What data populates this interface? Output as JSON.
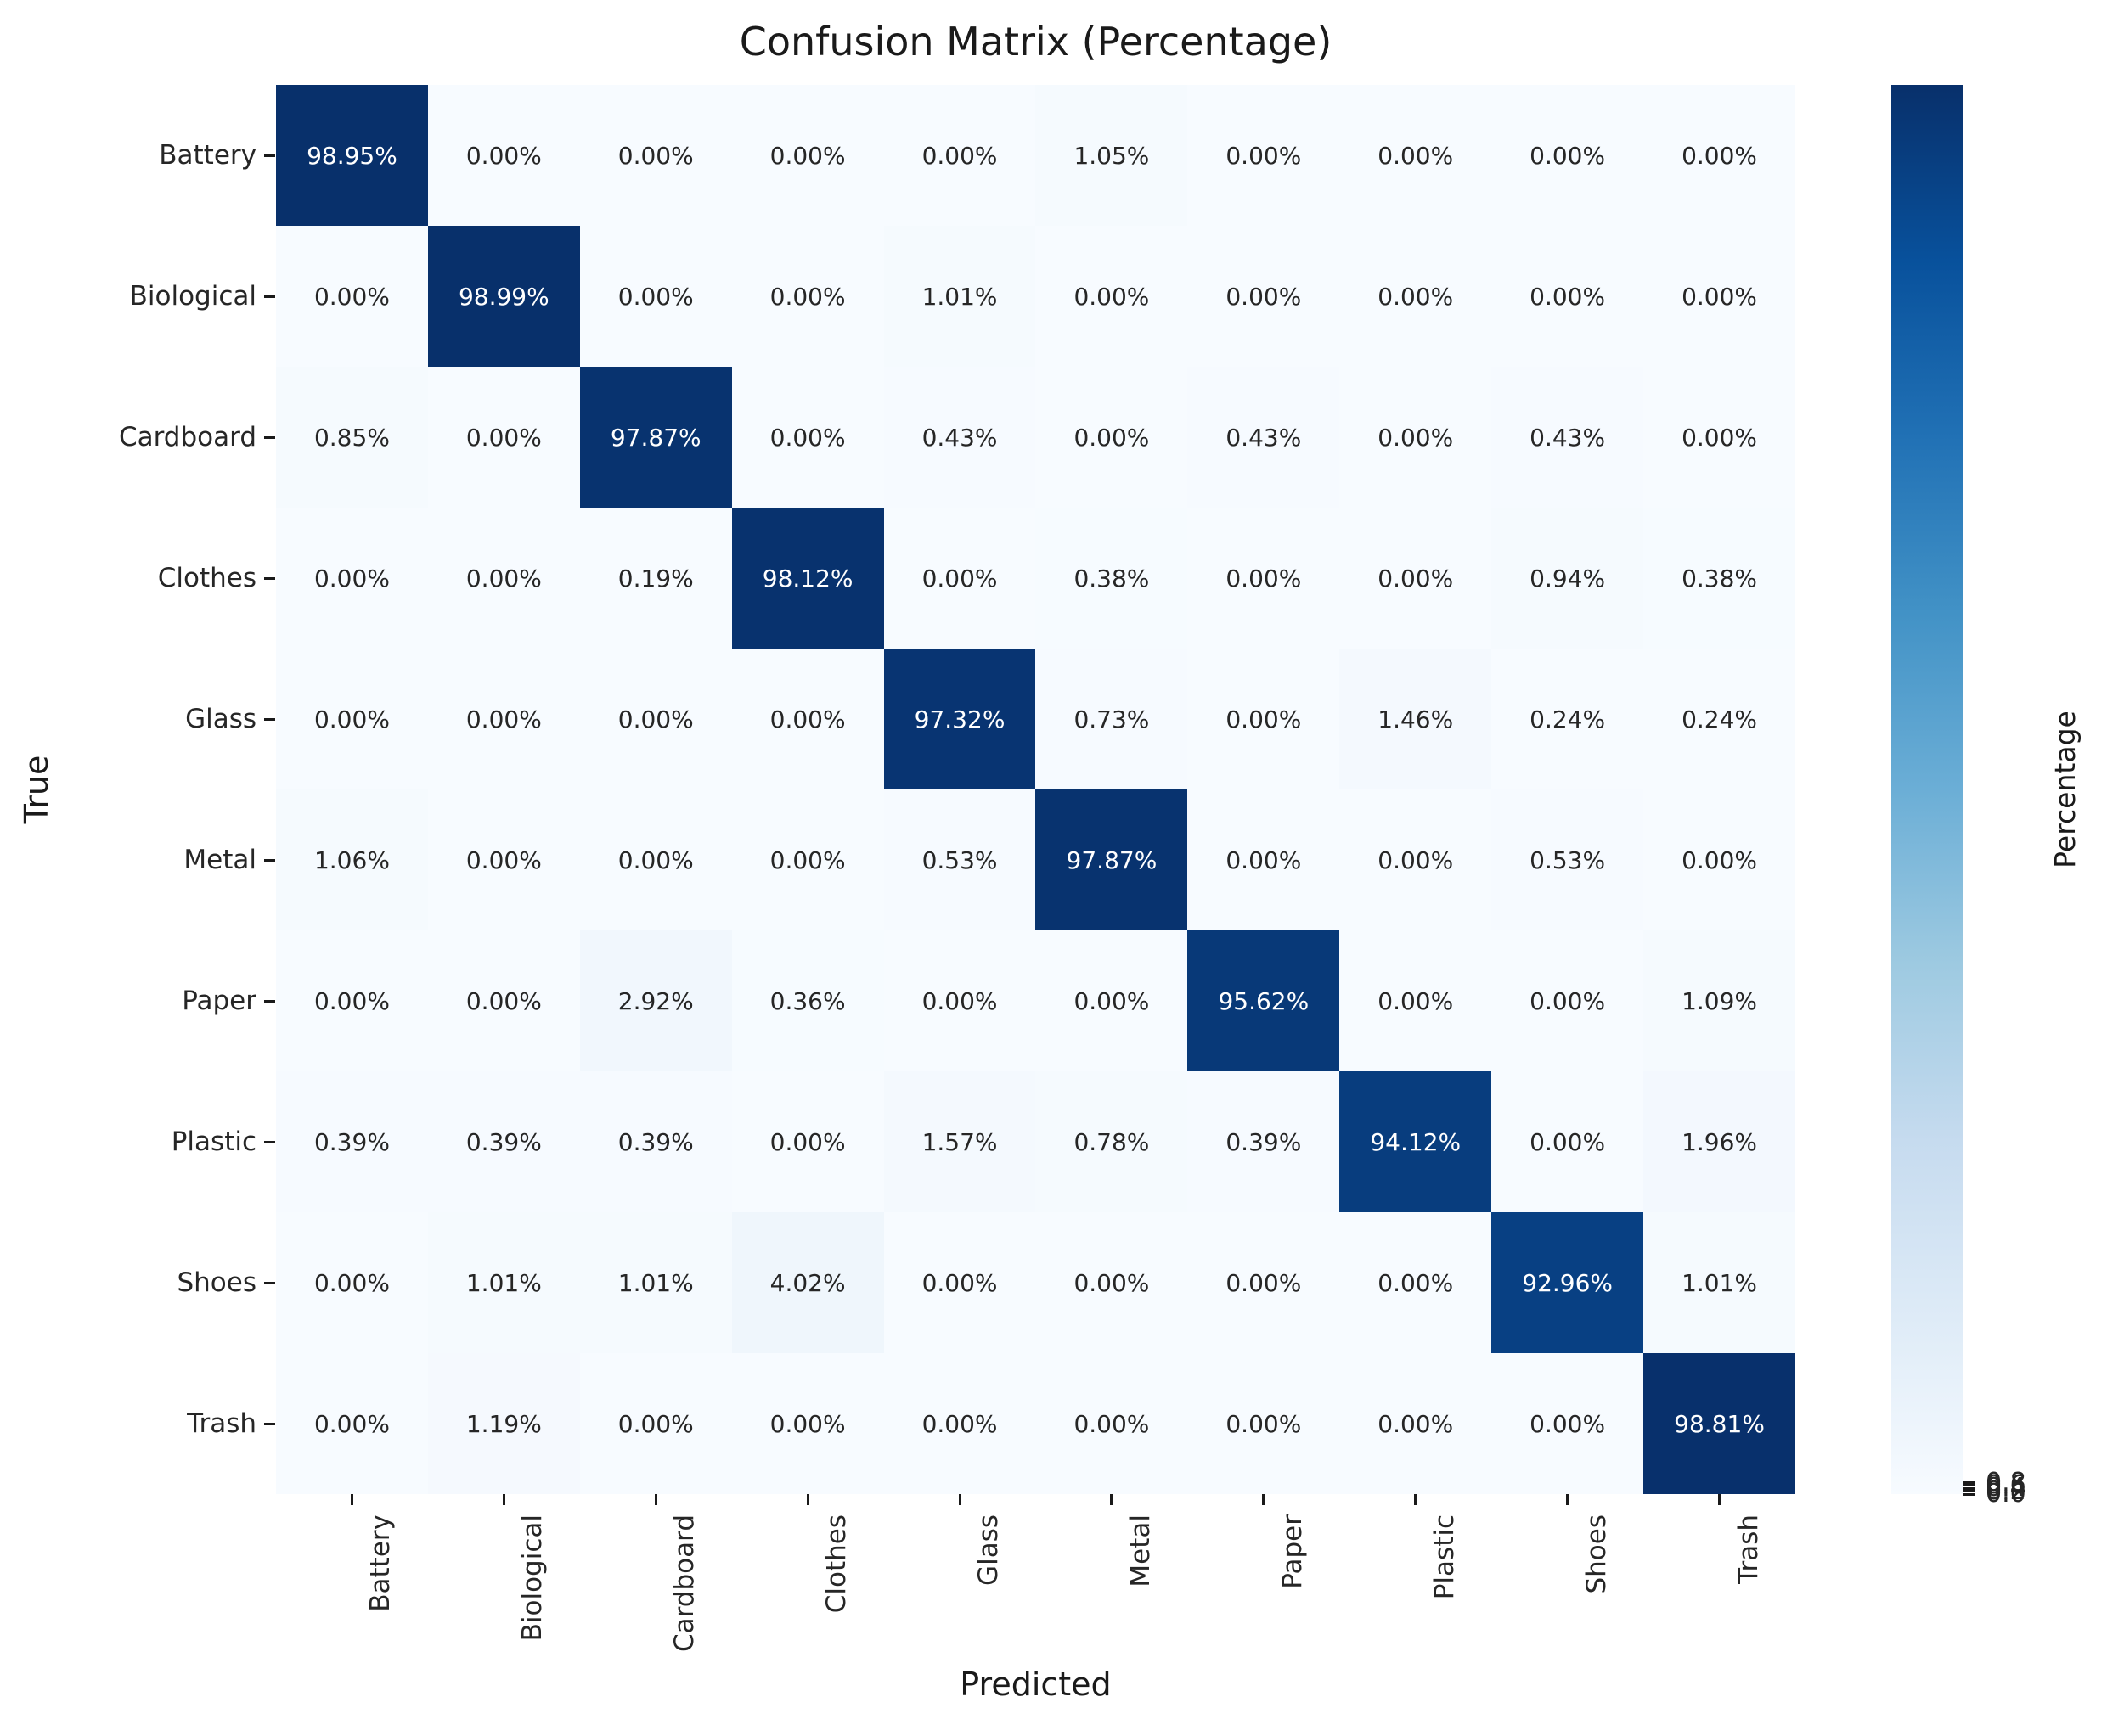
{
  "title": "Confusion Matrix (Percentage)",
  "chart_data": {
    "type": "heatmap",
    "title": "Confusion Matrix (Percentage)",
    "xlabel": "Predicted",
    "ylabel": "True",
    "categories": [
      "Battery",
      "Biological",
      "Cardboard",
      "Clothes",
      "Glass",
      "Metal",
      "Paper",
      "Plastic",
      "Shoes",
      "Trash"
    ],
    "matrix_percent": [
      [
        98.95,
        0.0,
        0.0,
        0.0,
        0.0,
        1.05,
        0.0,
        0.0,
        0.0,
        0.0
      ],
      [
        0.0,
        98.99,
        0.0,
        0.0,
        1.01,
        0.0,
        0.0,
        0.0,
        0.0,
        0.0
      ],
      [
        0.85,
        0.0,
        97.87,
        0.0,
        0.43,
        0.0,
        0.43,
        0.0,
        0.43,
        0.0
      ],
      [
        0.0,
        0.0,
        0.19,
        98.12,
        0.0,
        0.38,
        0.0,
        0.0,
        0.94,
        0.38
      ],
      [
        0.0,
        0.0,
        0.0,
        0.0,
        97.32,
        0.73,
        0.0,
        1.46,
        0.24,
        0.24
      ],
      [
        1.06,
        0.0,
        0.0,
        0.0,
        0.53,
        97.87,
        0.0,
        0.0,
        0.53,
        0.0
      ],
      [
        0.0,
        0.0,
        2.92,
        0.36,
        0.0,
        0.0,
        95.62,
        0.0,
        0.0,
        1.09
      ],
      [
        0.39,
        0.39,
        0.39,
        0.0,
        1.57,
        0.78,
        0.39,
        94.12,
        0.0,
        1.96
      ],
      [
        0.0,
        1.01,
        1.01,
        4.02,
        0.0,
        0.0,
        0.0,
        0.0,
        92.96,
        1.01
      ],
      [
        0.0,
        1.19,
        0.0,
        0.0,
        0.0,
        0.0,
        0.0,
        0.0,
        0.0,
        98.81
      ]
    ],
    "value_suffix": "%",
    "vmax_percent": 98.99,
    "grid": false,
    "legend_position": "none",
    "colorbar": {
      "label": "Percentage",
      "tick_labels": [
        "0.8",
        "0.6",
        "0.4",
        "0.2",
        "0.0"
      ],
      "ticks": [
        0.8,
        0.6,
        0.4,
        0.2,
        0.0
      ]
    },
    "colormap": {
      "name": "Blues",
      "anchors": [
        "#f7fbff",
        "#deebf7",
        "#c6dbef",
        "#9ecae1",
        "#6baed6",
        "#4292c6",
        "#2171b5",
        "#08519c",
        "#08306b"
      ]
    },
    "cell_text_color_light_bg": "#262626",
    "cell_text_color_dark_bg": "#ffffff"
  }
}
